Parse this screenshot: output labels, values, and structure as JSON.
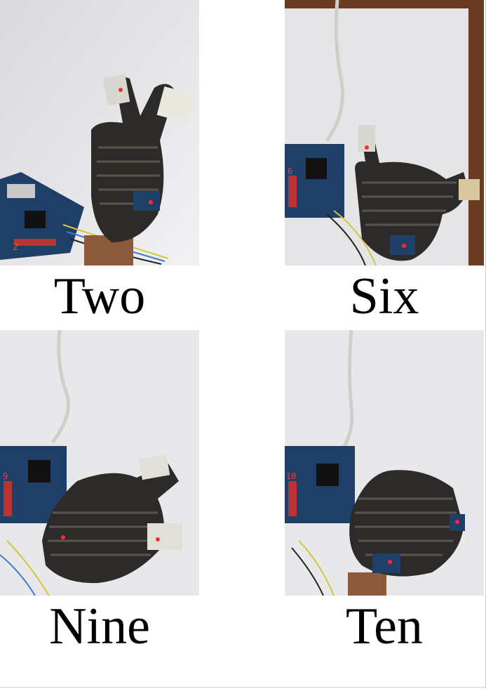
{
  "panels": [
    {
      "caption": "Two"
    },
    {
      "caption": "Six"
    },
    {
      "caption": "Nine"
    },
    {
      "caption": "Ten"
    }
  ],
  "board_digits": {
    "two": "2",
    "six": "6",
    "nine": "9",
    "ten": "10"
  },
  "colors": {
    "paper": "#e9e9eb",
    "glove": "#2d2b29",
    "board": "#1e3f6b",
    "cable": "#cfcfc9",
    "led": "#ff2a2a"
  },
  "icons": [
    "glove-icon",
    "fpga-board-icon",
    "usb-cable-icon",
    "sensor-module-icon"
  ]
}
